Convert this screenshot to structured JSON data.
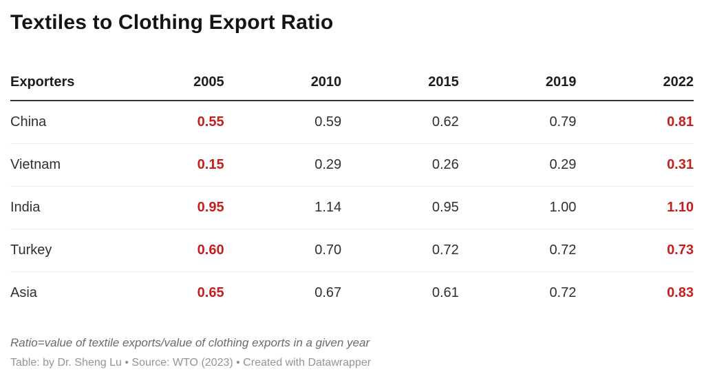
{
  "title": "Textiles to Clothing Export Ratio",
  "table": {
    "columns": [
      "Exporters",
      "2005",
      "2010",
      "2015",
      "2019",
      "2022"
    ],
    "rows": [
      {
        "name": "China",
        "values": [
          "0.55",
          "0.59",
          "0.62",
          "0.79",
          "0.81"
        ]
      },
      {
        "name": "Vietnam",
        "values": [
          "0.15",
          "0.29",
          "0.26",
          "0.29",
          "0.31"
        ]
      },
      {
        "name": "India",
        "values": [
          "0.95",
          "1.14",
          "0.95",
          "1.00",
          "1.10"
        ]
      },
      {
        "name": "Turkey",
        "values": [
          "0.60",
          "0.70",
          "0.72",
          "0.72",
          "0.73"
        ]
      },
      {
        "name": "Asia",
        "values": [
          "0.65",
          "0.67",
          "0.61",
          "0.72",
          "0.83"
        ]
      }
    ]
  },
  "footer": {
    "footnote": "Ratio=value of textile exports/value of clothing exports in a given year",
    "attribution": "Table: by Dr. Sheng Lu • Source: WTO (2023) • Created with Datawrapper"
  },
  "colors": {
    "highlight": "#c71e1d",
    "title_text": "#141414",
    "body_text": "#2f2f2f",
    "header_rule": "#333333",
    "row_rule": "#ebebeb",
    "footnote_text": "#6a6a6a",
    "attribution_text": "#949494",
    "background": "#ffffff"
  },
  "chart_data": {
    "type": "table",
    "title": "Textiles to Clothing Export Ratio",
    "columns": [
      "Exporters",
      "2005",
      "2010",
      "2015",
      "2019",
      "2022"
    ],
    "rows": [
      [
        "China",
        0.55,
        0.59,
        0.62,
        0.79,
        0.81
      ],
      [
        "Vietnam",
        0.15,
        0.29,
        0.26,
        0.29,
        0.31
      ],
      [
        "India",
        0.95,
        1.14,
        0.95,
        1.0,
        1.1
      ],
      [
        "Turkey",
        0.6,
        0.7,
        0.72,
        0.72,
        0.73
      ],
      [
        "Asia",
        0.65,
        0.67,
        0.61,
        0.72,
        0.83
      ]
    ],
    "highlighted_columns": [
      "2005",
      "2022"
    ],
    "highlight_color": "#c71e1d",
    "footnote": "Ratio=value of textile exports/value of clothing exports in a given year",
    "attribution": "Table: by Dr. Sheng Lu • Source: WTO (2023) • Created with Datawrapper"
  }
}
